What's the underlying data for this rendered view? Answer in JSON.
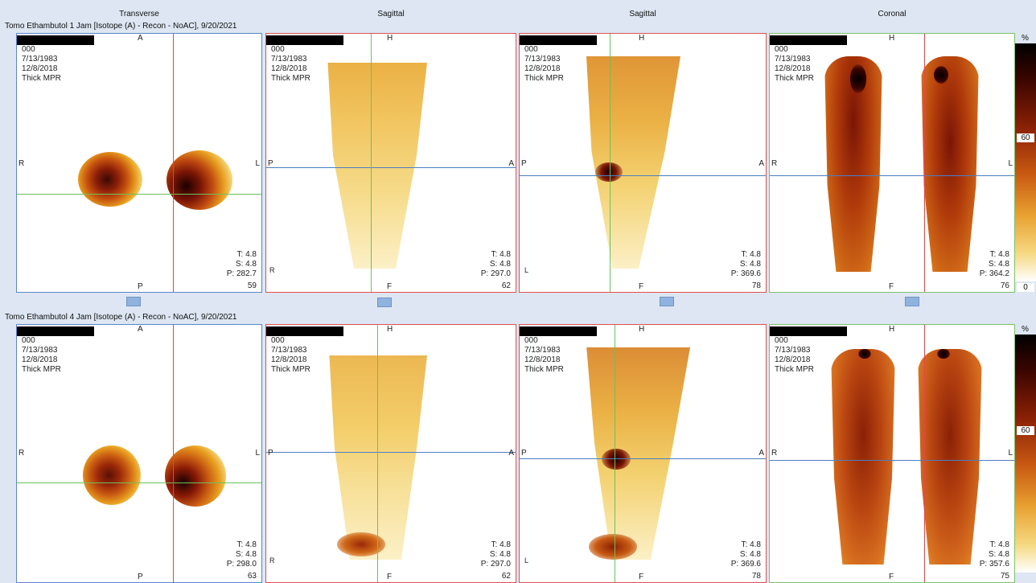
{
  "columns": [
    "Transverse",
    "Sagittal",
    "Sagittal",
    "Coronal"
  ],
  "rows": [
    {
      "title": "Tomo Ethambutol 1 Jam [Isotope (A) - Recon - NoAC], 9/20/2021",
      "panels": [
        {
          "id": "000",
          "dob": "7/13/1983",
          "date": "12/8/2018",
          "mode": "Thick MPR",
          "top": "A",
          "bottom": "P",
          "left": "R",
          "right": "L",
          "t": "T: 4.8",
          "s": "S: 4.8",
          "p": "P: 282.7",
          "slice": "59",
          "corner": ""
        },
        {
          "id": "000",
          "dob": "7/13/1983",
          "date": "12/8/2018",
          "mode": "Thick MPR",
          "top": "H",
          "bottom": "F",
          "left": "P",
          "right": "A",
          "t": "T: 4.8",
          "s": "S: 4.8",
          "p": "P: 297.0",
          "slice": "62",
          "corner": "R"
        },
        {
          "id": "000",
          "dob": "7/13/1983",
          "date": "12/8/2018",
          "mode": "Thick MPR",
          "top": "H",
          "bottom": "F",
          "left": "P",
          "right": "A",
          "t": "T: 4.8",
          "s": "S: 4.8",
          "p": "P: 369.6",
          "slice": "78",
          "corner": "L"
        },
        {
          "id": "000",
          "dob": "7/13/1983",
          "date": "12/8/2018",
          "mode": "Thick MPR",
          "top": "H",
          "bottom": "F",
          "left": "R",
          "right": "L",
          "t": "T: 4.8",
          "s": "S: 4.8",
          "p": "P: 364.2",
          "slice": "76",
          "corner": ""
        }
      ]
    },
    {
      "title": "Tomo Ethambutol 4 Jam [Isotope (A) - Recon - NoAC], 9/20/2021",
      "panels": [
        {
          "id": "000",
          "dob": "7/13/1983",
          "date": "12/8/2018",
          "mode": "Thick MPR",
          "top": "A",
          "bottom": "P",
          "left": "R",
          "right": "L",
          "t": "T: 4.8",
          "s": "S: 4.8",
          "p": "P: 298.0",
          "slice": "63",
          "corner": ""
        },
        {
          "id": "000",
          "dob": "7/13/1983",
          "date": "12/8/2018",
          "mode": "Thick MPR",
          "top": "H",
          "bottom": "F",
          "left": "P",
          "right": "A",
          "t": "T: 4.8",
          "s": "S: 4.8",
          "p": "P: 297.0",
          "slice": "62",
          "corner": "R"
        },
        {
          "id": "000",
          "dob": "7/13/1983",
          "date": "12/8/2018",
          "mode": "Thick MPR",
          "top": "H",
          "bottom": "F",
          "left": "P",
          "right": "A",
          "t": "T: 4.8",
          "s": "S: 4.8",
          "p": "P: 369.6",
          "slice": "78",
          "corner": "L"
        },
        {
          "id": "000",
          "dob": "7/13/1983",
          "date": "12/8/2018",
          "mode": "Thick MPR",
          "top": "H",
          "bottom": "F",
          "left": "R",
          "right": "L",
          "t": "T: 4.8",
          "s": "S: 4.8",
          "p": "P: 357.6",
          "slice": "75",
          "corner": ""
        }
      ]
    }
  ],
  "colorbar": {
    "unit": "%",
    "mid": "60",
    "min": "0",
    "max": "100"
  },
  "colors": {
    "frame_blue": "#5a86c8",
    "frame_red": "#e05050",
    "frame_green": "#7cc26a",
    "crosshair_blue": "#4a7fc1",
    "crosshair_red": "#e04848",
    "crosshair_green": "#6cc05a"
  }
}
